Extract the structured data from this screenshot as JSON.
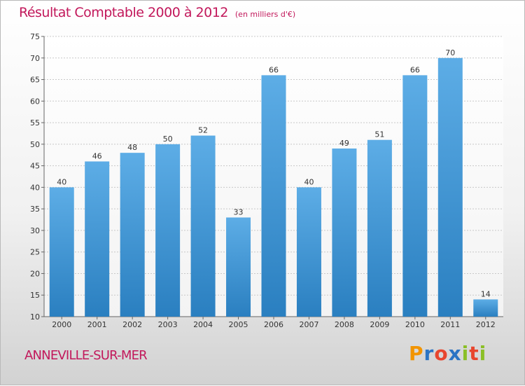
{
  "page": {
    "title": "Résultat Comptable 2000 à 2012",
    "subtitle": "(en milliers d'€)",
    "commune": "ANNEVILLE-SUR-MER",
    "brand": "Proxiti"
  },
  "colors": {
    "title": "#c2185b",
    "bar_light": "#5dade6",
    "bar_dark": "#2a7fc0",
    "grid": "#c8c8c8",
    "axis": "#666666",
    "brand_letters": [
      "#f29400",
      "#2b74c4",
      "#e8462e",
      "#2b74c4",
      "#8bbf26",
      "#e8462e",
      "#8bbf26"
    ]
  },
  "chart_data": {
    "type": "bar",
    "title": "Résultat Comptable 2000 à 2012",
    "subtitle": "(en milliers d'€)",
    "xlabel": "",
    "ylabel": "",
    "ylim": [
      10,
      75
    ],
    "yticks": [
      10,
      15,
      20,
      25,
      30,
      35,
      40,
      45,
      50,
      55,
      60,
      65,
      70,
      75
    ],
    "grid": true,
    "categories": [
      "2000",
      "2001",
      "2002",
      "2003",
      "2004",
      "2005",
      "2006",
      "2007",
      "2008",
      "2009",
      "2010",
      "2011",
      "2012"
    ],
    "values": [
      40,
      46,
      48,
      50,
      52,
      33,
      66,
      40,
      49,
      51,
      66,
      70,
      14
    ],
    "labels": [
      "40",
      "46",
      "48",
      "50",
      "52",
      "33",
      "66",
      "40",
      "49",
      "51",
      "66",
      "70",
      "14"
    ]
  }
}
